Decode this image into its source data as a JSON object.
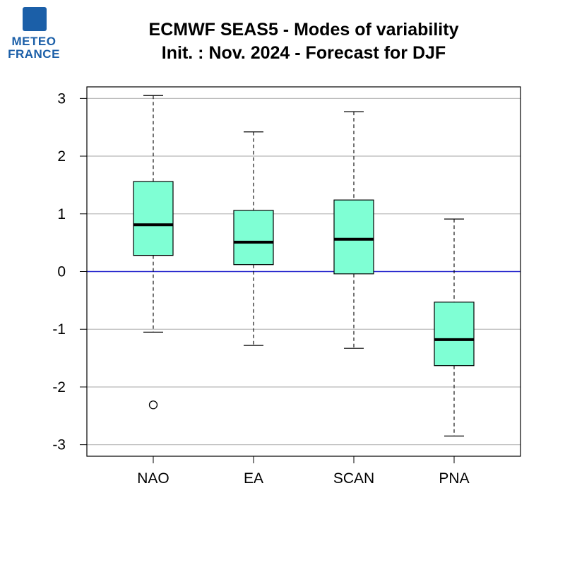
{
  "logo": {
    "line1": "METEO",
    "line2": "FRANCE"
  },
  "chart_data": {
    "type": "boxplot",
    "title": [
      "ECMWF SEAS5 - Modes of variability",
      "Init. : Nov. 2024 - Forecast for DJF"
    ],
    "xlabel": "",
    "ylabel": "",
    "ylim": [
      -3.2,
      3.2
    ],
    "yticks": [
      -3,
      -2,
      -1,
      0,
      1,
      2,
      3
    ],
    "grid": true,
    "zero_line_color": "#2222cc",
    "box_fill": "#7fffd4",
    "categories": [
      "NAO",
      "EA",
      "SCAN",
      "PNA"
    ],
    "boxes": [
      {
        "name": "NAO",
        "whisker_low": -1.05,
        "q1": 0.28,
        "median": 0.81,
        "q3": 1.56,
        "whisker_high": 3.05,
        "outliers": [
          -2.31
        ]
      },
      {
        "name": "EA",
        "whisker_low": -1.28,
        "q1": 0.12,
        "median": 0.51,
        "q3": 1.06,
        "whisker_high": 2.42,
        "outliers": []
      },
      {
        "name": "SCAN",
        "whisker_low": -1.33,
        "q1": -0.04,
        "median": 0.56,
        "q3": 1.24,
        "whisker_high": 2.77,
        "outliers": []
      },
      {
        "name": "PNA",
        "whisker_low": -2.85,
        "q1": -1.63,
        "median": -1.18,
        "q3": -0.53,
        "whisker_high": 0.91,
        "outliers": []
      }
    ]
  }
}
